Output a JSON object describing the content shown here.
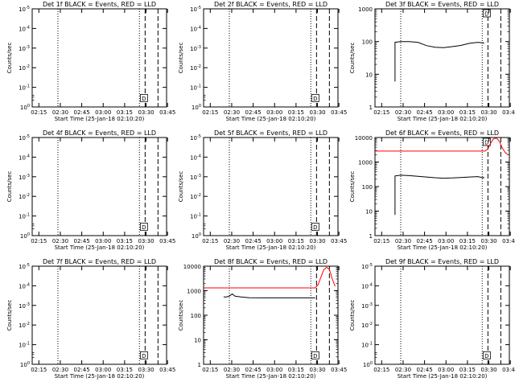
{
  "x_tick_labels": [
    "02:15",
    "02:30",
    "02:45",
    "03:00",
    "03:15",
    "03:30",
    "03:45"
  ],
  "x_axis_label": "Start Time (25-Jan-18 02:10:20)",
  "y_axis_label": "Counts/sec",
  "chart_data": [
    {
      "type": "line",
      "title": "Det 1f BLACK = Events, RED = LLD",
      "ylabel": "Counts/sec",
      "xlabel": "Start Time (25-Jan-18 02:10:20)",
      "xlim_minutes": [
        0,
        94
      ],
      "ylim": [
        1,
        1000000
      ],
      "y_tick_labels": [
        "10^0",
        "10^-1",
        "10^-2",
        "10^-3",
        "10^-4",
        "10^-5"
      ],
      "x_tick_labels": [
        "02:15",
        "02:30",
        "02:45",
        "03:00",
        "03:15",
        "03:30",
        "03:45"
      ],
      "vlines_minutes": {
        "dotted": [
          18,
          75
        ],
        "dashed": [
          79,
          88
        ]
      },
      "annotation": "D",
      "series": []
    },
    {
      "type": "line",
      "title": "Det 2f BLACK = Events, RED = LLD",
      "ylabel": "Counts/sec",
      "xlabel": "Start Time (25-Jan-18 02:10:20)",
      "xlim_minutes": [
        0,
        94
      ],
      "ylim": [
        1,
        1000000
      ],
      "y_tick_labels": [
        "10^0",
        "10^-1",
        "10^-2",
        "10^-3",
        "10^-4",
        "10^-5"
      ],
      "x_tick_labels": [
        "02:15",
        "02:30",
        "02:45",
        "03:00",
        "03:15",
        "03:30",
        "03:45"
      ],
      "vlines_minutes": {
        "dotted": [
          18,
          75
        ],
        "dashed": [
          79,
          88
        ]
      },
      "annotation": "D",
      "series": []
    },
    {
      "type": "line",
      "title": "Det 3f BLACK = Events, RED = LLD",
      "ylabel": "Counts/sec",
      "xlabel": "Start Time (25-Jan-18 02:10:20)",
      "xlim_minutes": [
        0,
        94
      ],
      "ylim": [
        1,
        1000
      ],
      "y_tick_labels": [
        "1",
        "10",
        "100",
        "1000"
      ],
      "x_tick_labels": [
        "02:15",
        "02:30",
        "02:45",
        "03:00",
        "03:15",
        "03:30",
        "03:45"
      ],
      "vlines_minutes": {
        "dotted": [
          18,
          75
        ],
        "dashed": [
          79,
          88
        ]
      },
      "annotation": "D",
      "series": [
        {
          "color": "#000000",
          "x": [
            14,
            14,
            18,
            24,
            30,
            36,
            42,
            48,
            54,
            60,
            66,
            72,
            76,
            76
          ],
          "y": [
            6,
            95,
            100,
            100,
            95,
            75,
            67,
            65,
            70,
            76,
            88,
            95,
            90,
            95
          ]
        }
      ]
    },
    {
      "type": "line",
      "title": "Det 4f BLACK = Events, RED = LLD",
      "ylabel": "Counts/sec",
      "xlabel": "Start Time (25-Jan-18 02:10:20)",
      "xlim_minutes": [
        0,
        94
      ],
      "ylim": [
        1,
        1000000
      ],
      "y_tick_labels": [
        "10^0",
        "10^-1",
        "10^-2",
        "10^-3",
        "10^-4",
        "10^-5"
      ],
      "x_tick_labels": [
        "02:15",
        "02:30",
        "02:45",
        "03:00",
        "03:15",
        "03:30",
        "03:45"
      ],
      "vlines_minutes": {
        "dotted": [
          18,
          75
        ],
        "dashed": [
          79,
          88
        ]
      },
      "annotation": "D",
      "series": []
    },
    {
      "type": "line",
      "title": "Det 5f BLACK = Events, RED = LLD",
      "ylabel": "Counts/sec",
      "xlabel": "Start Time (25-Jan-18 02:10:20)",
      "xlim_minutes": [
        0,
        94
      ],
      "ylim": [
        1,
        1000000
      ],
      "y_tick_labels": [
        "10^0",
        "10^-1",
        "10^-2",
        "10^-3",
        "10^-4",
        "10^-5"
      ],
      "x_tick_labels": [
        "02:15",
        "02:30",
        "02:45",
        "03:00",
        "03:15",
        "03:30",
        "03:45"
      ],
      "vlines_minutes": {
        "dotted": [
          18,
          75
        ],
        "dashed": [
          79,
          88
        ]
      },
      "annotation": "D",
      "series": []
    },
    {
      "type": "line",
      "title": "Det 6f BLACK = Events, RED = LLD",
      "ylabel": "Counts/sec",
      "xlabel": "Start Time (25-Jan-18 02:10:20)",
      "xlim_minutes": [
        0,
        94
      ],
      "ylim": [
        1,
        10000
      ],
      "y_tick_labels": [
        "1",
        "10",
        "100",
        "1000",
        "10000"
      ],
      "x_tick_labels": [
        "02:15",
        "02:30",
        "02:45",
        "03:00",
        "03:15",
        "03:30",
        "03:45"
      ],
      "vlines_minutes": {
        "dotted": [
          18,
          75
        ],
        "dashed": [
          79,
          88
        ]
      },
      "annotation": "D",
      "series": [
        {
          "color": "#000000",
          "x": [
            14,
            14,
            18,
            24,
            30,
            36,
            42,
            48,
            54,
            60,
            66,
            72,
            76,
            76
          ],
          "y": [
            7,
            270,
            290,
            280,
            260,
            245,
            230,
            220,
            225,
            235,
            245,
            255,
            225,
            250
          ]
        },
        {
          "color": "#ff0000",
          "x": [
            0,
            20,
            40,
            60,
            77,
            79,
            81,
            83,
            85,
            87,
            89,
            91,
            93
          ],
          "y": [
            2800,
            2800,
            2800,
            2800,
            2800,
            3500,
            6000,
            9000,
            9500,
            7000,
            3800,
            2500,
            2000
          ]
        }
      ]
    },
    {
      "type": "line",
      "title": "Det 7f BLACK = Events, RED = LLD",
      "ylabel": "Counts/sec",
      "xlabel": "Start Time (25-Jan-18 02:10:20)",
      "xlim_minutes": [
        0,
        94
      ],
      "ylim": [
        1,
        1000000
      ],
      "y_tick_labels": [
        "10^0",
        "10^-1",
        "10^-2",
        "10^-3",
        "10^-4",
        "10^-5"
      ],
      "x_tick_labels": [
        "02:15",
        "02:30",
        "02:45",
        "03:00",
        "03:15",
        "03:30",
        "03:45"
      ],
      "vlines_minutes": {
        "dotted": [
          18,
          75
        ],
        "dashed": [
          79,
          88
        ]
      },
      "annotation": "D",
      "series": []
    },
    {
      "type": "line",
      "title": "Det 8f BLACK = Events, RED = LLD",
      "ylabel": "Counts/sec",
      "xlabel": "Start Time (25-Jan-18 02:10:20)",
      "xlim_minutes": [
        0,
        94
      ],
      "ylim": [
        1,
        10000
      ],
      "y_tick_labels": [
        "1",
        "10",
        "100",
        "1000",
        "10000"
      ],
      "x_tick_labels": [
        "02:15",
        "02:30",
        "02:45",
        "03:00",
        "03:15",
        "03:30",
        "03:45"
      ],
      "vlines_minutes": {
        "dotted": [
          18,
          75
        ],
        "dashed": [
          79,
          88
        ]
      },
      "annotation": "D",
      "series": [
        {
          "color": "#000000",
          "x": [
            14,
            16,
            18,
            20,
            22,
            26,
            32,
            40,
            50,
            60,
            70,
            78
          ],
          "y": [
            560,
            560,
            600,
            740,
            600,
            560,
            520,
            510,
            510,
            510,
            510,
            510
          ]
        },
        {
          "color": "#ff0000",
          "x": [
            0,
            20,
            40,
            60,
            78,
            80,
            82,
            84,
            86,
            88,
            90,
            92
          ],
          "y": [
            1300,
            1300,
            1300,
            1300,
            1300,
            1700,
            3500,
            7000,
            9000,
            7500,
            3000,
            1500
          ]
        }
      ]
    },
    {
      "type": "line",
      "title": "Det 9f BLACK = Events, RED = LLD",
      "ylabel": "Counts/sec",
      "xlabel": "Start Time (25-Jan-18 02:10:20)",
      "xlim_minutes": [
        0,
        94
      ],
      "ylim": [
        1,
        1000000
      ],
      "y_tick_labels": [
        "10^0",
        "10^-1",
        "10^-2",
        "10^-3",
        "10^-4",
        "10^-5"
      ],
      "x_tick_labels": [
        "02:15",
        "02:30",
        "02:45",
        "03:00",
        "03:15",
        "03:30",
        "03:45"
      ],
      "vlines_minutes": {
        "dotted": [
          18,
          75
        ],
        "dashed": [
          79,
          88
        ]
      },
      "annotation": "D",
      "series": []
    }
  ]
}
